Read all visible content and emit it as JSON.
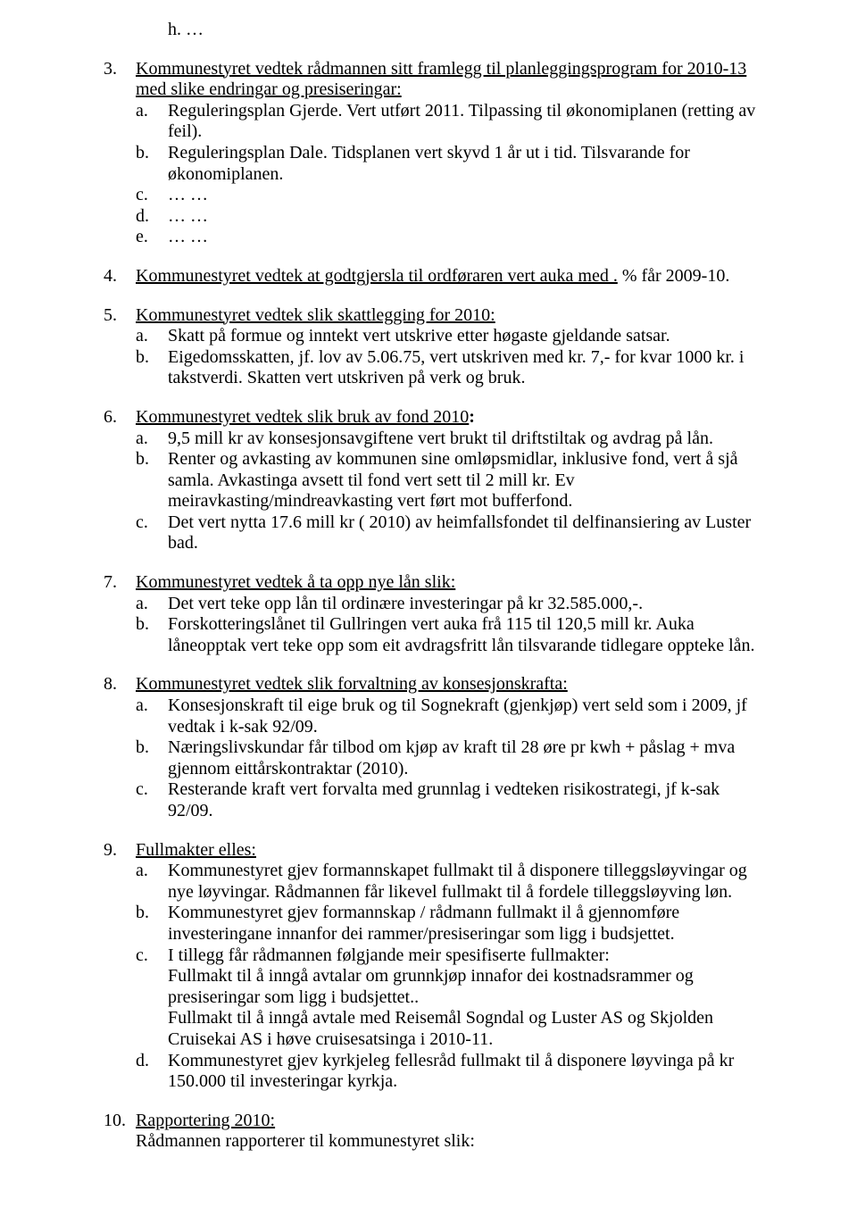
{
  "colors": {
    "background": "#ffffff",
    "text": "#000000"
  },
  "typography": {
    "font_family": "Times New Roman",
    "font_size_pt": 12,
    "line_height": 1.18
  },
  "h_prefix": "h.",
  "h_suffix": "…",
  "items": [
    {
      "num": "3.",
      "title": "Kommunestyret vedtek rådmannen sitt framlegg til planleggingsprogram for 2010-13 med slike endringar og presiseringar:",
      "sub": [
        {
          "letter": "a.",
          "text": "Reguleringsplan Gjerde. Vert utført 2011. Tilpassing til økonomiplanen (retting av feil)."
        },
        {
          "letter": "b.",
          "text": "Reguleringsplan Dale. Tidsplanen vert skyvd 1 år ut i tid. Tilsvarande for økonomiplanen."
        },
        {
          "letter": "c.",
          "text": "… …"
        },
        {
          "letter": "d.",
          "text": "… …"
        },
        {
          "letter": "e.",
          "text": "… …"
        }
      ]
    },
    {
      "num": "4.",
      "title_pre": "Kommunestyret vedtek at godtgjersla til ordføraren vert auka med .",
      "title_post": "  % får 2009-10.",
      "sub": []
    },
    {
      "num": "5.",
      "title": "Kommunestyret vedtek slik skattlegging for 2010:",
      "sub": [
        {
          "letter": "a.",
          "text": "Skatt på formue og inntekt vert utskrive etter høgaste gjeldande satsar."
        },
        {
          "letter": "b.",
          "text": "Eigedomsskatten, jf. lov av 5.06.75, vert utskriven med kr. 7,- for kvar 1000 kr. i takstverdi. Skatten vert utskriven på verk og bruk."
        }
      ]
    },
    {
      "num": "6.",
      "title": "Kommunestyret vedtek slik bruk av fond 2010",
      "title_bold_colon": ":",
      "sub": [
        {
          "letter": "a.",
          "text": "9,5 mill kr av konsesjonsavgiftene vert brukt til driftstiltak og avdrag på lån."
        },
        {
          "letter": "b.",
          "text": "Renter og avkasting av kommunen sine omløpsmidlar, inklusive fond, vert å sjå samla. Avkastinga avsett til fond vert sett til 2 mill kr. Ev meiravkasting/mindreavkasting vert  ført mot bufferfond."
        },
        {
          "letter": "c.",
          "text": "Det vert nytta 17.6 mill kr ( 2010) av heimfallsfondet til delfinansiering av Luster bad."
        }
      ]
    },
    {
      "num": "7.",
      "title": "Kommunestyret vedtek å ta opp nye lån slik:",
      "sub": [
        {
          "letter": "a.",
          "text": "Det vert teke opp lån til ordinære investeringar på kr 32.585.000,-."
        },
        {
          "letter": "b.",
          "text": "Forskotteringslånet til Gullringen vert auka frå 115 til 120,5 mill kr. Auka låneopptak vert teke opp som eit avdragsfritt lån tilsvarande tidlegare oppteke lån."
        }
      ]
    },
    {
      "num": "8.",
      "title": "Kommunestyret vedtek slik forvaltning av konsesjonskrafta:",
      "sub": [
        {
          "letter": "a.",
          "text": "Konsesjonskraft til eige bruk og til Sognekraft (gjenkjøp) vert seld som i 2009, jf vedtak i k-sak 92/09."
        },
        {
          "letter": "b.",
          "text": "Næringslivskundar får tilbod om kjøp av kraft til 28 øre pr kwh + påslag + mva gjennom eittårskontraktar (2010)."
        },
        {
          "letter": "c.",
          "text": "Resterande kraft vert forvalta med grunnlag i vedteken risikostrategi, jf k-sak 92/09."
        }
      ]
    },
    {
      "num": "9.",
      "title": "Fullmakter elles:",
      "sub": [
        {
          "letter": "a.",
          "text": "Kommunestyret gjev formannskapet fullmakt til å disponere tilleggsløyvingar og nye løyvingar. Rådmannen får likevel fullmakt til å fordele  tilleggsløyving løn."
        },
        {
          "letter": "b.",
          "text": "Kommunestyret gjev formannskap / rådmann fullmakt il å gjennomføre investeringane innanfor dei rammer/presiseringar som ligg i budsjettet."
        },
        {
          "letter": "c.",
          "text": "I tillegg får rådmannen følgjande meir spesifiserte fullmakter:",
          "extra": [
            "Fullmakt til å inngå avtalar om grunnkjøp innafor dei kostnadsrammer og presiseringar som ligg i budsjettet..",
            "Fullmakt til å inngå avtale med Reisemål Sogndal og Luster AS og Skjolden Cruisekai AS i høve cruisesatsinga i 2010-11."
          ]
        },
        {
          "letter": "d.",
          "text": "Kommunestyret gjev kyrkjeleg fellesråd fullmakt til å disponere løyvinga på kr 150.000 til investeringar kyrkja."
        }
      ]
    },
    {
      "num": "10.",
      "title": "Rapportering 2010:",
      "trailing": "Rådmannen rapporterer til kommunestyret slik:"
    }
  ]
}
